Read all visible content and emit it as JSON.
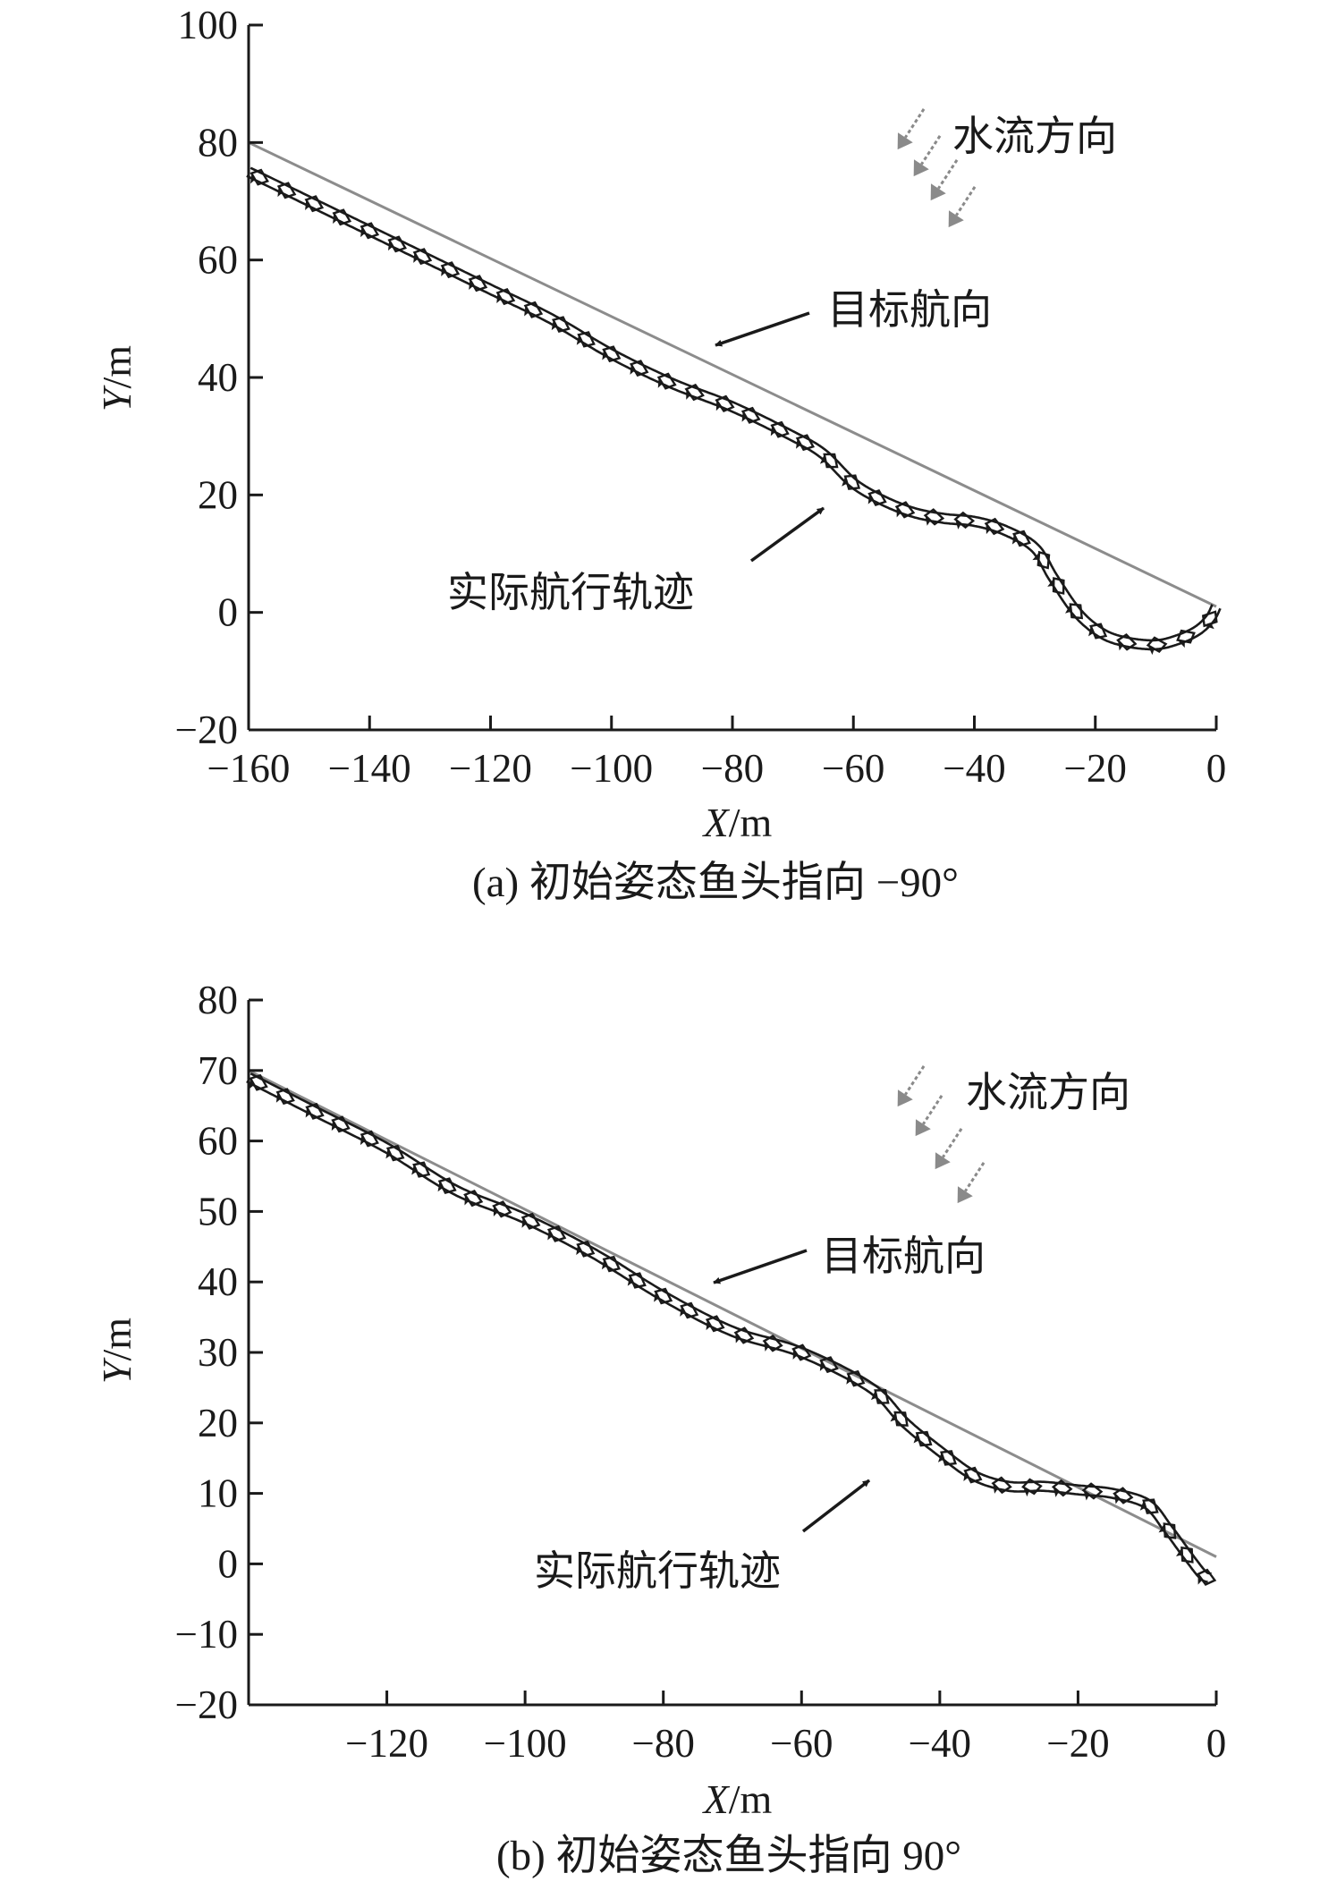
{
  "chart_data": [
    {
      "type": "line",
      "caption": "(a) 初始姿态鱼头指向 −90°",
      "xlabel_var": "X",
      "xlabel_unit": "/m",
      "ylabel_var": "Y",
      "ylabel_unit": "/m",
      "xlim": [
        -160,
        0
      ],
      "ylim": [
        -20,
        100
      ],
      "xticks": [
        -160,
        -140,
        -120,
        -100,
        -80,
        -60,
        -40,
        -20,
        0
      ],
      "xtick_labels": [
        "−160",
        "−140",
        "−120",
        "−100",
        "−80",
        "−60",
        "−40",
        "−20",
        "0"
      ],
      "yticks": [
        -20,
        0,
        20,
        40,
        60,
        80,
        100
      ],
      "ytick_labels": [
        "−20",
        "0",
        "20",
        "40",
        "60",
        "80",
        "100"
      ],
      "annotations": {
        "flow": "水流方向",
        "target": "目标航向",
        "actual": "实际航行轨迹"
      },
      "series": [
        {
          "role": "target-course",
          "color": "#8c8c8c",
          "x": [
            -160,
            0
          ],
          "y": [
            80,
            1
          ]
        },
        {
          "role": "actual-trajectory",
          "color": "#1a1a1a",
          "x": [
            -160,
            -150,
            -140,
            -130,
            -120,
            -110,
            -100,
            -90,
            -80,
            -70,
            -65,
            -60,
            -55,
            -50,
            -45,
            -40,
            -35,
            -30,
            -27,
            -23,
            -19,
            -15,
            -10,
            -6,
            -3,
            -1,
            0
          ],
          "y": [
            75,
            70,
            65,
            60,
            55,
            50,
            44,
            39,
            35,
            30,
            27,
            22,
            19,
            17,
            16,
            15.5,
            14,
            11,
            6,
            0,
            -3.5,
            -5,
            -5.5,
            -4.5,
            -3,
            -1,
            1
          ]
        }
      ]
    },
    {
      "type": "line",
      "caption": "(b) 初始姿态鱼头指向 90°",
      "xlabel_var": "X",
      "xlabel_unit": "/m",
      "ylabel_var": "Y",
      "ylabel_unit": "/m",
      "xlim": [
        -140,
        0
      ],
      "ylim": [
        -20,
        80
      ],
      "xticks": [
        -120,
        -100,
        -80,
        -60,
        -40,
        -20,
        0
      ],
      "xtick_labels": [
        "−120",
        "−100",
        "−80",
        "−60",
        "−40",
        "−20",
        "0"
      ],
      "yticks": [
        -20,
        -10,
        0,
        10,
        20,
        30,
        40,
        50,
        60,
        70,
        80
      ],
      "ytick_labels": [
        "−20",
        "−10",
        "0",
        "10",
        "20",
        "30",
        "40",
        "50",
        "60",
        "70",
        "80"
      ],
      "annotations": {
        "flow": "水流方向",
        "target": "目标航向",
        "actual": "实际航行轨迹"
      },
      "series": [
        {
          "role": "target-course",
          "color": "#8c8c8c",
          "x": [
            -140,
            0
          ],
          "y": [
            70,
            1
          ]
        },
        {
          "role": "actual-trajectory",
          "color": "#1a1a1a",
          "x": [
            -140,
            -130,
            -120,
            -110,
            -100,
            -90,
            -80,
            -70,
            -60,
            -50,
            -45,
            -40,
            -35,
            -30,
            -25,
            -20,
            -15,
            -10,
            -7,
            -4,
            -2,
            -1
          ],
          "y": [
            69,
            64,
            59,
            53,
            49,
            44,
            38,
            33,
            30,
            25,
            20,
            16,
            12.5,
            11,
            11,
            10.5,
            10,
            8.5,
            5,
            1,
            -1.5,
            -2
          ]
        }
      ]
    }
  ]
}
